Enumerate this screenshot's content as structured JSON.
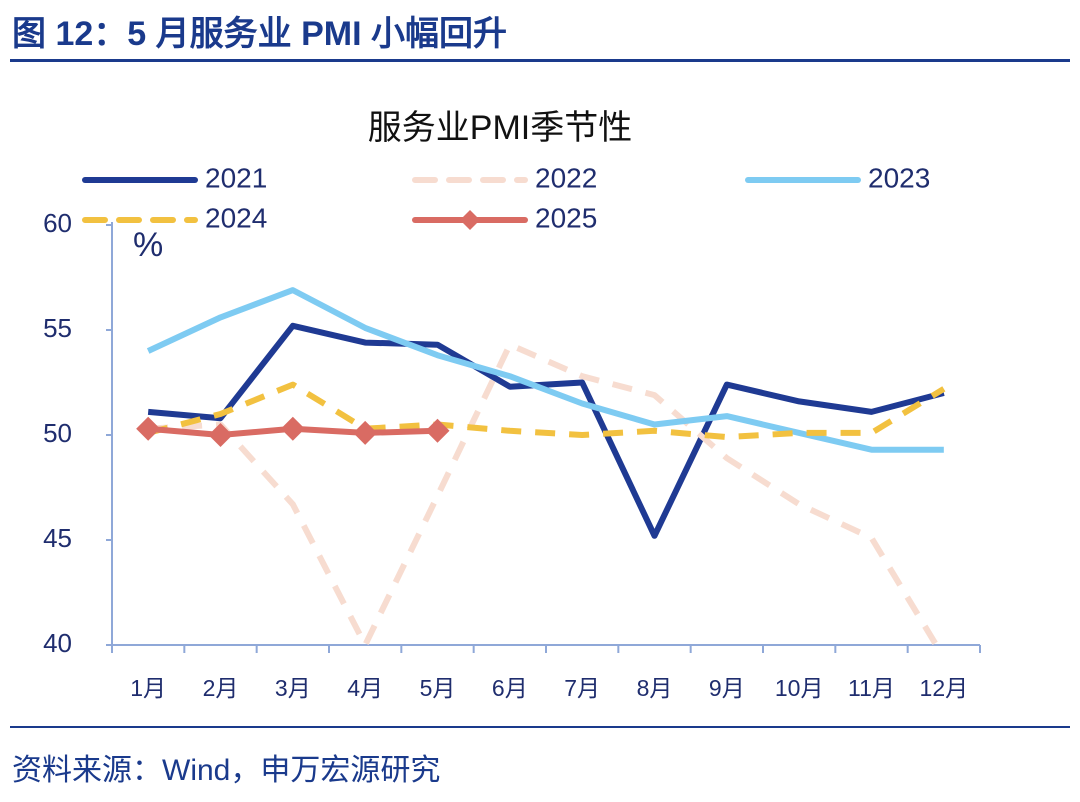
{
  "header": {
    "title": "图 12：5 月服务业 PMI 小幅回升"
  },
  "chart_data": {
    "type": "line",
    "title": "服务业PMI季节性",
    "ylabel": "%",
    "categories": [
      "1月",
      "2月",
      "3月",
      "4月",
      "5月",
      "6月",
      "7月",
      "8月",
      "9月",
      "10月",
      "11月",
      "12月"
    ],
    "ylim": [
      40,
      60
    ],
    "yticks": [
      40,
      45,
      50,
      55,
      60
    ],
    "series": [
      {
        "name": "2021",
        "color": "#1f3a93",
        "dashed": false,
        "values": [
          51.1,
          50.8,
          55.2,
          54.4,
          54.3,
          52.3,
          52.5,
          45.2,
          52.4,
          51.6,
          51.1,
          52.0
        ]
      },
      {
        "name": "2022",
        "color": "#f7dcd0",
        "dashed": true,
        "values": [
          50.3,
          50.5,
          46.7,
          40.0,
          47.1,
          54.3,
          52.8,
          51.9,
          48.9,
          46.7,
          45.1,
          39.4
        ]
      },
      {
        "name": "2023",
        "color": "#7ecbf2",
        "dashed": false,
        "values": [
          54.0,
          55.6,
          56.9,
          55.1,
          53.8,
          52.8,
          51.5,
          50.5,
          50.9,
          50.1,
          49.3,
          49.3
        ]
      },
      {
        "name": "2024",
        "color": "#f2c140",
        "dashed": true,
        "values": [
          50.1,
          51.0,
          52.4,
          50.3,
          50.5,
          50.2,
          50.0,
          50.2,
          49.9,
          50.1,
          50.1,
          52.2
        ]
      },
      {
        "name": "2025",
        "color": "#d96b63",
        "dashed": false,
        "marker": "diamond",
        "values": [
          50.3,
          50.0,
          50.3,
          50.1,
          50.2,
          null,
          null,
          null,
          null,
          null,
          null,
          null
        ]
      }
    ]
  },
  "footer": {
    "source": "资料来源：Wind，申万宏源研究"
  }
}
